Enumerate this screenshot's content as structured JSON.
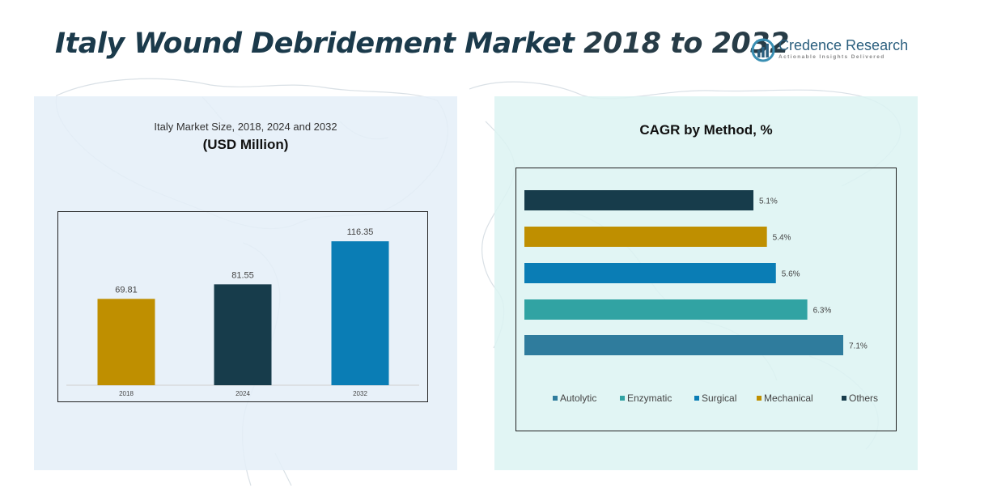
{
  "title_main": "Italy Wound Debridement Market",
  "title_years": "2018 to 2032",
  "logo": {
    "name": "Credence Research",
    "tagline": "Actionable Insights Delivered"
  },
  "colors": {
    "gold": "#bf8f00",
    "navy": "#173c4b",
    "blue": "#0a7db5",
    "teal": "#31a3a3",
    "steel": "#2f7c9d"
  },
  "chart_data": [
    {
      "type": "bar",
      "title": "Italy Market Size, 2018, 2024 and 2032",
      "subtitle": "(USD Million)",
      "categories": [
        "2018",
        "2024",
        "2032"
      ],
      "values": [
        69.81,
        81.55,
        116.35
      ],
      "value_labels": [
        "69.81",
        "81.55",
        "116.35"
      ],
      "bar_colors": [
        "#bf8f00",
        "#173c4b",
        "#0a7db5"
      ],
      "ylim": [
        0,
        140
      ],
      "grid": false
    },
    {
      "type": "bar",
      "orientation": "horizontal",
      "title": "CAGR by Method, %",
      "categories": [
        "Others",
        "Mechanical",
        "Surgical",
        "Enzymatic",
        "Autolytic"
      ],
      "values": [
        5.1,
        5.4,
        5.6,
        6.3,
        7.1
      ],
      "value_labels": [
        "5.1%",
        "5.4%",
        "5.6%",
        "6.3%",
        "7.1%"
      ],
      "bar_colors": [
        "#173c4b",
        "#bf8f00",
        "#0a7db5",
        "#31a3a3",
        "#2f7c9d"
      ],
      "xlim": [
        0,
        7.1
      ],
      "grid": false,
      "legend": {
        "placement": "bottom",
        "items": [
          {
            "label": "Autolytic",
            "color": "#2f7c9d"
          },
          {
            "label": "Enzymatic",
            "color": "#31a3a3"
          },
          {
            "label": "Surgical",
            "color": "#0a7db5"
          },
          {
            "label": "Mechanical",
            "color": "#bf8f00"
          },
          {
            "label": "Others",
            "color": "#173c4b"
          }
        ]
      }
    }
  ]
}
